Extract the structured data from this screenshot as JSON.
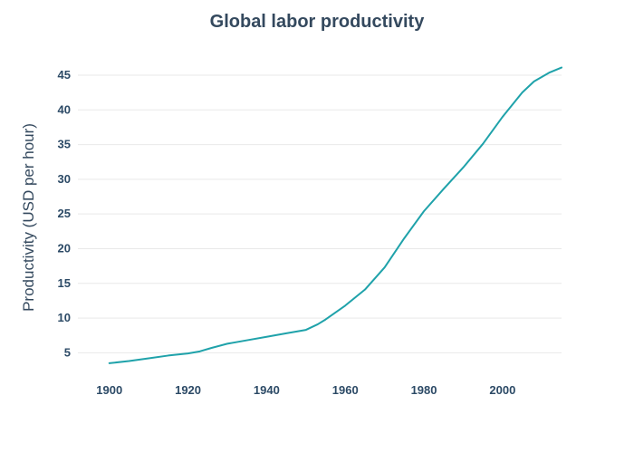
{
  "chart_data": {
    "type": "line",
    "title": "Global labor productivity",
    "xlabel": "",
    "ylabel": "Productivity (USD per hour)",
    "xlim": [
      1892,
      2015
    ],
    "ylim": [
      1,
      48
    ],
    "x_ticks": [
      1900,
      1920,
      1940,
      1960,
      1980,
      2000
    ],
    "y_ticks": [
      5,
      10,
      15,
      20,
      25,
      30,
      35,
      40,
      45
    ],
    "grid": true,
    "series": [
      {
        "color": "#1fa2aa",
        "x": [
          1900,
          1905,
          1910,
          1915,
          1920,
          1923,
          1926,
          1930,
          1935,
          1940,
          1945,
          1950,
          1953,
          1955,
          1960,
          1965,
          1970,
          1975,
          1980,
          1985,
          1990,
          1995,
          2000,
          2005,
          2008,
          2012,
          2015
        ],
        "y": [
          3.5,
          3.8,
          4.2,
          4.6,
          4.9,
          5.2,
          5.7,
          6.3,
          6.8,
          7.3,
          7.8,
          8.3,
          9.1,
          9.8,
          11.8,
          14.1,
          17.3,
          21.5,
          25.4,
          28.6,
          31.7,
          35.1,
          39.0,
          42.5,
          44.1,
          45.4,
          46.1
        ]
      }
    ]
  }
}
